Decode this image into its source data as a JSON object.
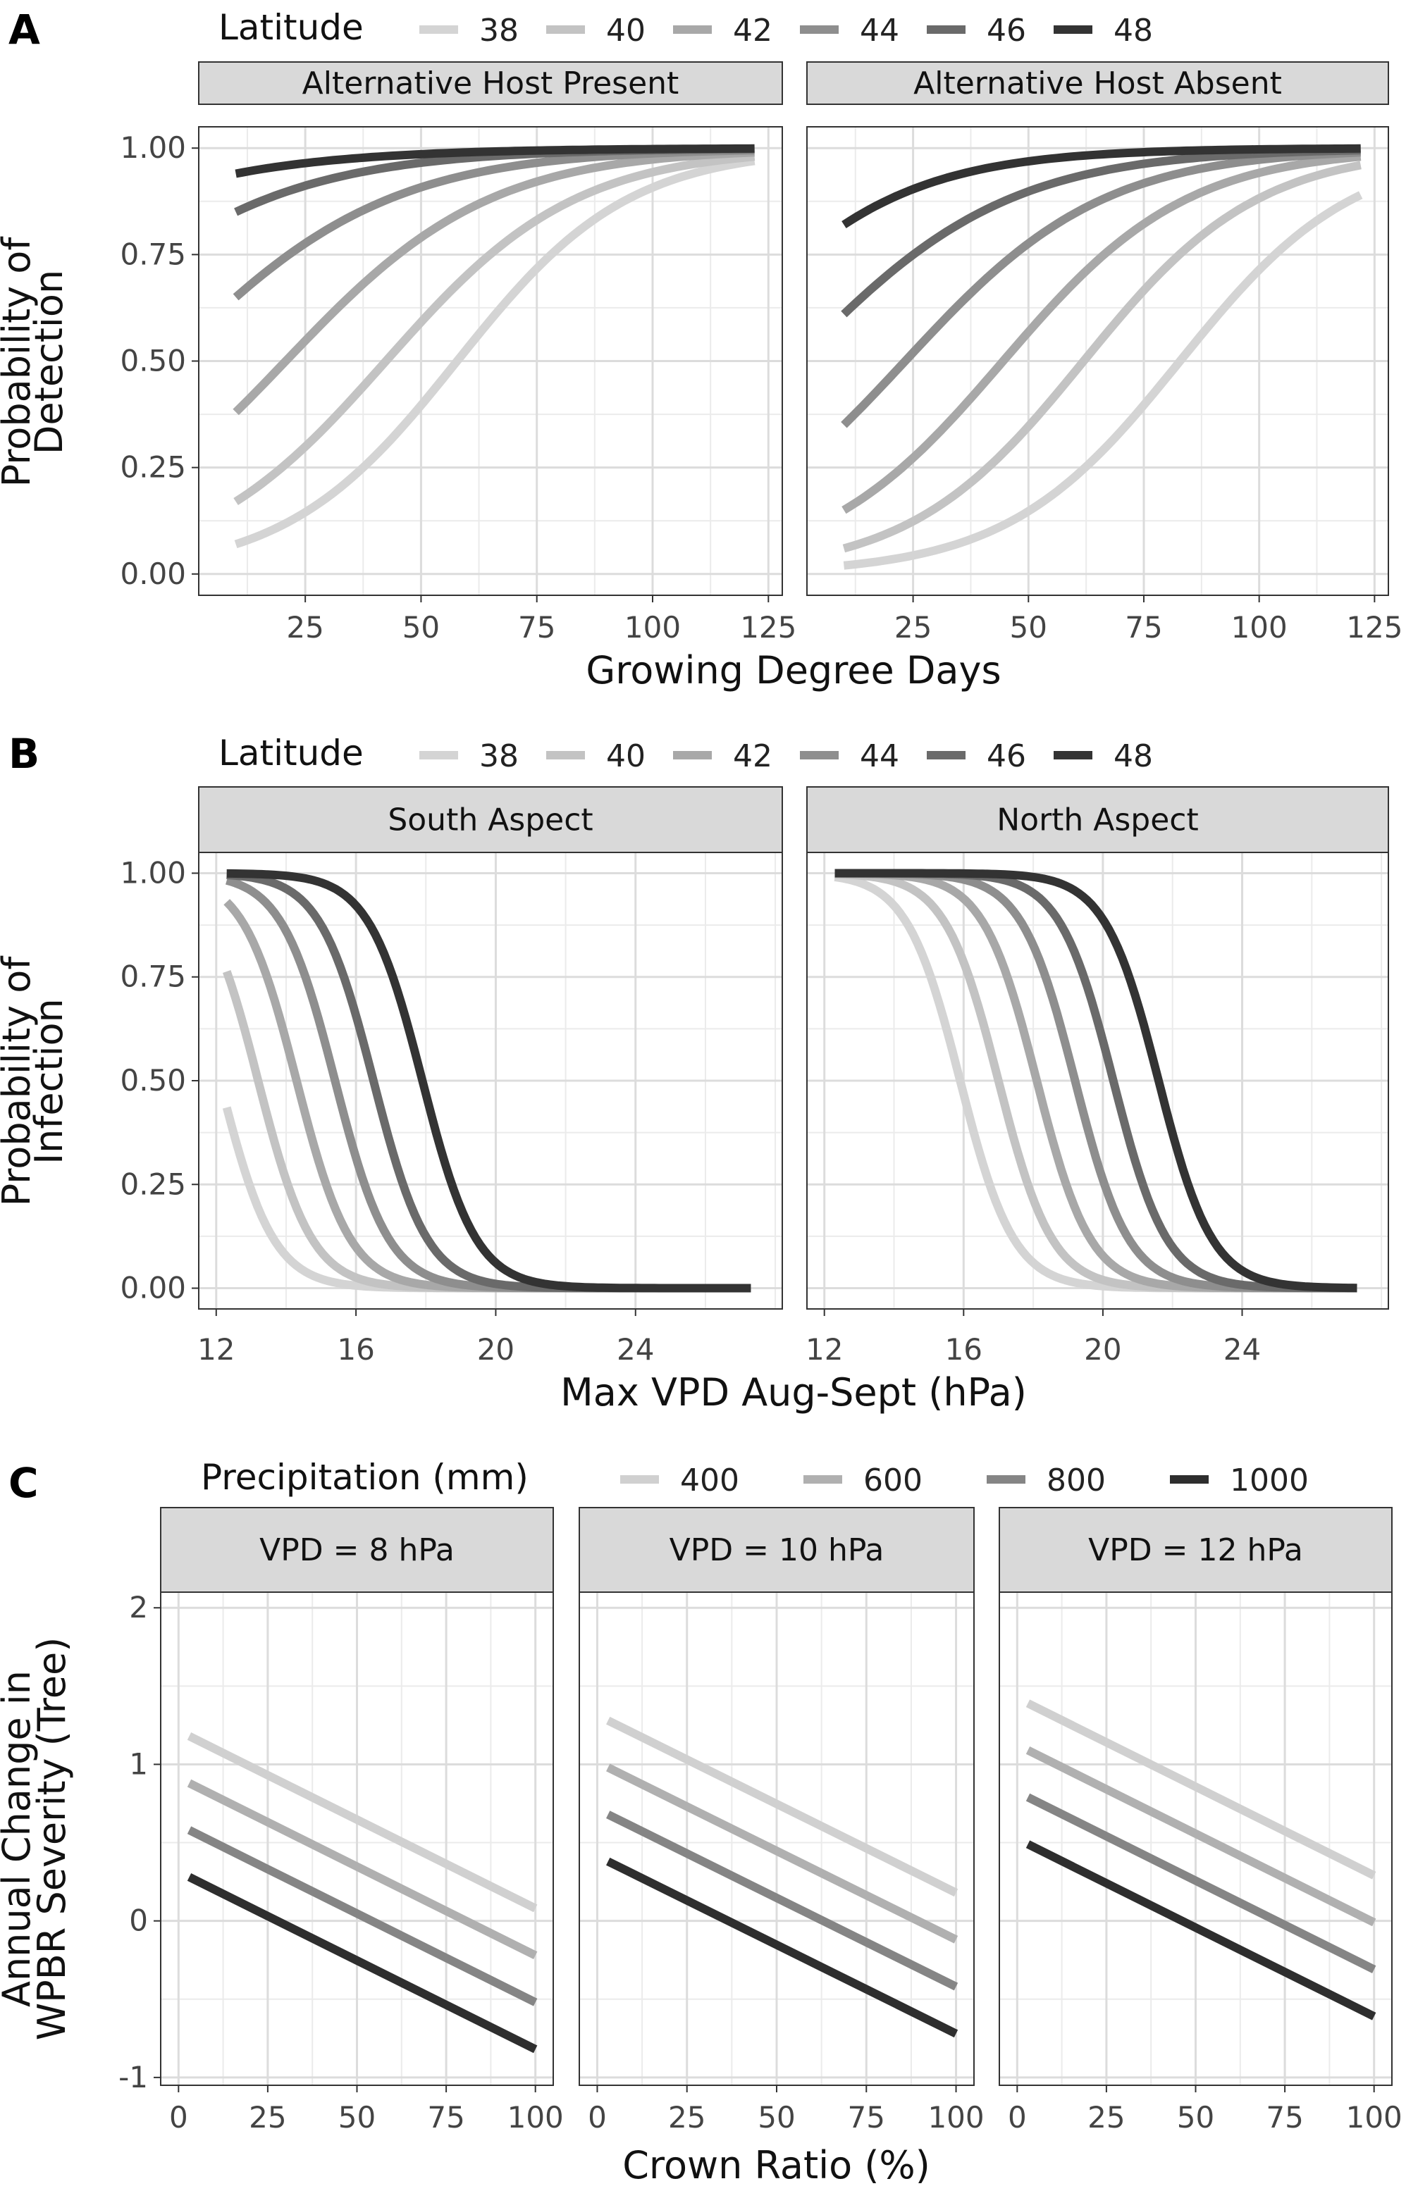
{
  "chart_data": [
    {
      "type": "line",
      "panel_label": "A",
      "legend_title": "Latitude",
      "legend": [
        "38",
        "40",
        "42",
        "44",
        "46",
        "48"
      ],
      "colors": [
        "#d4d4d4",
        "#c3c3c3",
        "#a8a8a8",
        "#8e8e8e",
        "#6a6a6a",
        "#333333"
      ],
      "xlabel": "Growing Degree Days",
      "ylabel": [
        "Probability of",
        "Detection"
      ],
      "xlim": [
        2,
        128
      ],
      "ylim": [
        -0.05,
        1.05
      ],
      "xticks": [
        25,
        50,
        75,
        100,
        125
      ],
      "yticks": [
        0,
        0.25,
        0.5,
        0.75,
        1
      ],
      "ytick_labels": [
        "0.00",
        "0.25",
        "0.50",
        "0.75",
        "1.00"
      ],
      "x_range": [
        10,
        122
      ],
      "facets": [
        {
          "title": "Alternative Host Present",
          "series": [
            {
              "name": "38",
              "start": 0.07,
              "end": 0.97
            },
            {
              "name": "40",
              "start": 0.17,
              "end": 0.98
            },
            {
              "name": "42",
              "start": 0.38,
              "end": 0.99
            },
            {
              "name": "44",
              "start": 0.65,
              "end": 0.995
            },
            {
              "name": "46",
              "start": 0.85,
              "end": 0.998
            },
            {
              "name": "48",
              "start": 0.94,
              "end": 0.999
            }
          ]
        },
        {
          "title": "Alternative Host Absent",
          "series": [
            {
              "name": "38",
              "start": 0.02,
              "end": 0.89
            },
            {
              "name": "40",
              "start": 0.06,
              "end": 0.96
            },
            {
              "name": "42",
              "start": 0.15,
              "end": 0.98
            },
            {
              "name": "44",
              "start": 0.35,
              "end": 0.99
            },
            {
              "name": "46",
              "start": 0.61,
              "end": 0.995
            },
            {
              "name": "48",
              "start": 0.82,
              "end": 0.999
            }
          ]
        }
      ]
    },
    {
      "type": "line",
      "panel_label": "B",
      "legend_title": "Latitude",
      "legend": [
        "38",
        "40",
        "42",
        "44",
        "46",
        "48"
      ],
      "colors": [
        "#d4d4d4",
        "#c3c3c3",
        "#a8a8a8",
        "#8e8e8e",
        "#6a6a6a",
        "#333333"
      ],
      "xlabel": "Max VPD Aug-Sept (hPa)",
      "ylabel": [
        "Probability of",
        "Infection"
      ],
      "xlim": [
        11.5,
        28.2
      ],
      "ylim": [
        -0.05,
        1.05
      ],
      "xticks": [
        12,
        16,
        20,
        24
      ],
      "yticks": [
        0,
        0.25,
        0.5,
        0.75,
        1
      ],
      "ytick_labels": [
        "0.00",
        "0.25",
        "0.50",
        "0.75",
        "1.00"
      ],
      "x_range": [
        12.3,
        27.3
      ],
      "facets": [
        {
          "title": "South Aspect",
          "series": [
            {
              "name": "38",
              "midpoint": 12.1,
              "slope": 1.3
            },
            {
              "name": "40",
              "midpoint": 13.2,
              "slope": 1.3
            },
            {
              "name": "42",
              "midpoint": 14.3,
              "slope": 1.3
            },
            {
              "name": "44",
              "midpoint": 15.4,
              "slope": 1.3
            },
            {
              "name": "46",
              "midpoint": 16.5,
              "slope": 1.3
            },
            {
              "name": "48",
              "midpoint": 17.9,
              "slope": 1.3
            }
          ]
        },
        {
          "title": "North Aspect",
          "series": [
            {
              "name": "38",
              "midpoint": 15.9,
              "slope": 1.3
            },
            {
              "name": "40",
              "midpoint": 17.0,
              "slope": 1.3
            },
            {
              "name": "42",
              "midpoint": 18.1,
              "slope": 1.3
            },
            {
              "name": "44",
              "midpoint": 19.2,
              "slope": 1.3
            },
            {
              "name": "46",
              "midpoint": 20.3,
              "slope": 1.3
            },
            {
              "name": "48",
              "midpoint": 21.6,
              "slope": 1.3
            }
          ]
        }
      ]
    },
    {
      "type": "line",
      "panel_label": "C",
      "legend_title": "Precipitation (mm)",
      "legend": [
        "400",
        "600",
        "800",
        "1000"
      ],
      "colors": [
        "#d0d0d0",
        "#b0b0b0",
        "#858585",
        "#2e2e2e"
      ],
      "xlabel": "Crown Ratio (%)",
      "ylabel": [
        "Annual Change in",
        "WPBR Severity (Tree)"
      ],
      "xlim": [
        -5,
        105
      ],
      "ylim": [
        -1.05,
        2.1
      ],
      "xticks": [
        0,
        25,
        50,
        75,
        100
      ],
      "yticks": [
        -1,
        0,
        1,
        2
      ],
      "ytick_labels": [
        "-1",
        "0",
        "1",
        "2"
      ],
      "facets": [
        {
          "title": "VPD = 8 hPa",
          "series": [
            {
              "name": "400",
              "x": [
                3,
                100
              ],
              "y": [
                1.18,
                0.08
              ]
            },
            {
              "name": "600",
              "x": [
                3,
                100
              ],
              "y": [
                0.88,
                -0.22
              ]
            },
            {
              "name": "800",
              "x": [
                3,
                100
              ],
              "y": [
                0.58,
                -0.52
              ]
            },
            {
              "name": "1000",
              "x": [
                3,
                100
              ],
              "y": [
                0.28,
                -0.82
              ]
            }
          ]
        },
        {
          "title": "VPD = 10 hPa",
          "series": [
            {
              "name": "400",
              "x": [
                3,
                100
              ],
              "y": [
                1.28,
                0.18
              ]
            },
            {
              "name": "600",
              "x": [
                3,
                100
              ],
              "y": [
                0.98,
                -0.12
              ]
            },
            {
              "name": "800",
              "x": [
                3,
                100
              ],
              "y": [
                0.68,
                -0.42
              ]
            },
            {
              "name": "1000",
              "x": [
                3,
                100
              ],
              "y": [
                0.38,
                -0.72
              ]
            }
          ]
        },
        {
          "title": "VPD = 12 hPa",
          "series": [
            {
              "name": "400",
              "x": [
                3,
                100
              ],
              "y": [
                1.39,
                0.29
              ]
            },
            {
              "name": "600",
              "x": [
                3,
                100
              ],
              "y": [
                1.09,
                -0.01
              ]
            },
            {
              "name": "800",
              "x": [
                3,
                100
              ],
              "y": [
                0.79,
                -0.31
              ]
            },
            {
              "name": "1000",
              "x": [
                3,
                100
              ],
              "y": [
                0.49,
                -0.61
              ]
            }
          ]
        }
      ]
    }
  ]
}
